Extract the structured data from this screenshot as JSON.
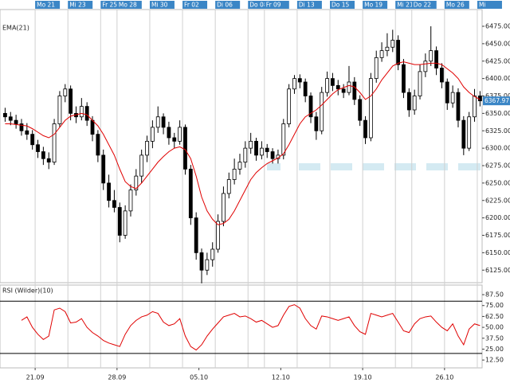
{
  "chart_data": [
    {
      "type": "candlestick",
      "top_labels": [
        null,
        null,
        null,
        null,
        null,
        null,
        "Mo 21",
        null,
        null,
        null,
        null,
        null,
        "Mi 23",
        null,
        null,
        null,
        null,
        null,
        "Fr 25",
        null,
        null,
        "Mo 28",
        null,
        null,
        null,
        null,
        null,
        "Mi 30",
        null,
        null,
        null,
        null,
        null,
        "Fr 02",
        null,
        null,
        null,
        null,
        null,
        "Di 06",
        null,
        null,
        null,
        null,
        null,
        "Do 08",
        null,
        null,
        "Fr 09",
        null,
        null,
        null,
        null,
        null,
        "Di 13",
        null,
        null,
        null,
        null,
        null,
        "Do 15",
        null,
        null,
        null,
        null,
        null,
        "Mo 19",
        null,
        null,
        null,
        null,
        null,
        "Mi 21",
        null,
        null,
        "Do 22",
        null,
        null,
        null,
        null,
        null,
        "Mo 26",
        null,
        null,
        null,
        null,
        null,
        "Mi"
      ],
      "ohlc": [
        [
          6350,
          6358,
          6338,
          6345
        ],
        [
          6345,
          6352,
          6333,
          6340
        ],
        [
          6340,
          6348,
          6328,
          6335
        ],
        [
          6335,
          6342,
          6318,
          6325
        ],
        [
          6325,
          6336,
          6312,
          6320
        ],
        [
          6320,
          6326,
          6298,
          6305
        ],
        [
          6305,
          6312,
          6286,
          6295
        ],
        [
          6295,
          6302,
          6276,
          6285
        ],
        [
          6285,
          6294,
          6270,
          6280
        ],
        [
          6280,
          6342,
          6276,
          6335
        ],
        [
          6335,
          6382,
          6330,
          6375
        ],
        [
          6375,
          6392,
          6366,
          6385
        ],
        [
          6385,
          6390,
          6340,
          6350
        ],
        [
          6350,
          6360,
          6336,
          6345
        ],
        [
          6345,
          6372,
          6340,
          6360
        ],
        [
          6360,
          6366,
          6332,
          6340
        ],
        [
          6340,
          6346,
          6310,
          6320
        ],
        [
          6320,
          6326,
          6280,
          6290
        ],
        [
          6290,
          6298,
          6240,
          6250
        ],
        [
          6250,
          6262,
          6215,
          6225
        ],
        [
          6225,
          6240,
          6208,
          6215
        ],
        [
          6215,
          6222,
          6165,
          6175
        ],
        [
          6175,
          6218,
          6170,
          6210
        ],
        [
          6210,
          6248,
          6202,
          6240
        ],
        [
          6240,
          6270,
          6232,
          6260
        ],
        [
          6260,
          6298,
          6250,
          6290
        ],
        [
          6290,
          6318,
          6280,
          6310
        ],
        [
          6310,
          6340,
          6300,
          6330
        ],
        [
          6330,
          6360,
          6322,
          6345
        ],
        [
          6345,
          6350,
          6320,
          6330
        ],
        [
          6330,
          6338,
          6305,
          6315
        ],
        [
          6315,
          6322,
          6300,
          6310
        ],
        [
          6310,
          6340,
          6305,
          6330
        ],
        [
          6330,
          6334,
          6262,
          6270
        ],
        [
          6270,
          6276,
          6190,
          6200
        ],
        [
          6200,
          6208,
          6140,
          6150
        ],
        [
          6150,
          6156,
          6106,
          6125
        ],
        [
          6125,
          6150,
          6118,
          6140
        ],
        [
          6140,
          6165,
          6130,
          6155
        ],
        [
          6155,
          6205,
          6150,
          6195
        ],
        [
          6195,
          6245,
          6188,
          6235
        ],
        [
          6235,
          6265,
          6228,
          6255
        ],
        [
          6255,
          6285,
          6248,
          6270
        ],
        [
          6270,
          6292,
          6262,
          6280
        ],
        [
          6280,
          6310,
          6272,
          6300
        ],
        [
          6300,
          6322,
          6292,
          6310
        ],
        [
          6310,
          6315,
          6282,
          6290
        ],
        [
          6290,
          6310,
          6284,
          6300
        ],
        [
          6300,
          6306,
          6286,
          6295
        ],
        [
          6295,
          6300,
          6278,
          6285
        ],
        [
          6285,
          6298,
          6278,
          6290
        ],
        [
          6290,
          6342,
          6284,
          6335
        ],
        [
          6335,
          6392,
          6330,
          6385
        ],
        [
          6385,
          6405,
          6378,
          6400
        ],
        [
          6400,
          6406,
          6386,
          6395
        ],
        [
          6395,
          6400,
          6366,
          6375
        ],
        [
          6375,
          6380,
          6336,
          6345
        ],
        [
          6345,
          6352,
          6312,
          6325
        ],
        [
          6325,
          6388,
          6320,
          6380
        ],
        [
          6380,
          6410,
          6374,
          6400
        ],
        [
          6400,
          6408,
          6382,
          6390
        ],
        [
          6390,
          6398,
          6376,
          6385
        ],
        [
          6385,
          6392,
          6372,
          6380
        ],
        [
          6380,
          6418,
          6376,
          6395
        ],
        [
          6395,
          6402,
          6362,
          6370
        ],
        [
          6370,
          6376,
          6332,
          6340
        ],
        [
          6340,
          6346,
          6306,
          6315
        ],
        [
          6315,
          6408,
          6310,
          6400
        ],
        [
          6400,
          6440,
          6394,
          6430
        ],
        [
          6430,
          6452,
          6424,
          6440
        ],
        [
          6440,
          6465,
          6432,
          6445
        ],
        [
          6445,
          6470,
          6438,
          6455
        ],
        [
          6455,
          6462,
          6412,
          6420
        ],
        [
          6420,
          6428,
          6372,
          6380
        ],
        [
          6380,
          6386,
          6345,
          6355
        ],
        [
          6355,
          6384,
          6348,
          6375
        ],
        [
          6375,
          6420,
          6370,
          6410
        ],
        [
          6410,
          6436,
          6402,
          6425
        ],
        [
          6425,
          6475,
          6418,
          6440
        ],
        [
          6440,
          6446,
          6405,
          6415
        ],
        [
          6415,
          6422,
          6386,
          6395
        ],
        [
          6395,
          6400,
          6355,
          6365
        ],
        [
          6365,
          6390,
          6358,
          6380
        ],
        [
          6380,
          6386,
          6330,
          6340
        ],
        [
          6340,
          6346,
          6290,
          6300
        ],
        [
          6300,
          6352,
          6296,
          6345
        ],
        [
          6345,
          6385,
          6338,
          6375
        ],
        [
          6375,
          6382,
          6360,
          6367.97
        ]
      ],
      "up_color": "#ffffff",
      "down_color": "#000000",
      "series": [
        {
          "name": "EMA(21)",
          "color": "#e00000",
          "values": [
            6335,
            6335,
            6334,
            6333,
            6332,
            6328,
            6323,
            6318,
            6315,
            6320,
            6330,
            6340,
            6346,
            6348,
            6350,
            6348,
            6340,
            6332,
            6320,
            6305,
            6290,
            6270,
            6252,
            6245,
            6242,
            6250,
            6260,
            6270,
            6280,
            6288,
            6295,
            6300,
            6302,
            6298,
            6285,
            6260,
            6230,
            6210,
            6198,
            6190,
            6192,
            6198,
            6210,
            6225,
            6240,
            6255,
            6265,
            6272,
            6278,
            6282,
            6286,
            6292,
            6305,
            6320,
            6335,
            6345,
            6350,
            6355,
            6362,
            6370,
            6378,
            6384,
            6387,
            6390,
            6388,
            6380,
            6370,
            6375,
            6385,
            6398,
            6408,
            6418,
            6422,
            6424,
            6422,
            6420,
            6420,
            6421,
            6422,
            6422,
            6420,
            6414,
            6408,
            6400,
            6388,
            6380,
            6374,
            6370
          ]
        }
      ],
      "last_price": 6367.97,
      "ylim": [
        6107,
        6499
      ],
      "yticks": [
        {
          "value": 6125,
          "label": "6125.00"
        },
        {
          "value": 6150,
          "label": "6150.00"
        },
        {
          "value": 6175,
          "label": "6175.00"
        },
        {
          "value": 6200,
          "label": "6200.00"
        },
        {
          "value": 6225,
          "label": "6225.00"
        },
        {
          "value": 6250,
          "label": "6250.00"
        },
        {
          "value": 6275,
          "label": "6275.00"
        },
        {
          "value": 6300,
          "label": "6300.00"
        },
        {
          "value": 6325,
          "label": "6325.00"
        },
        {
          "value": 6350,
          "label": "6350.00"
        },
        {
          "value": 6375,
          "label": "6375.00"
        },
        {
          "value": 6400,
          "label": "6400.00"
        },
        {
          "value": 6425,
          "label": "6425.00"
        },
        {
          "value": 6450,
          "label": "6450.00"
        },
        {
          "value": 6475,
          "label": "6475.00"
        }
      ]
    },
    {
      "type": "line",
      "categories": [
        null,
        null,
        null,
        null,
        null,
        null,
        "21.09",
        null,
        null,
        null,
        null,
        null,
        null,
        null,
        null,
        null,
        null,
        null,
        null,
        null,
        null,
        "28.09",
        null,
        null,
        null,
        null,
        null,
        null,
        null,
        null,
        null,
        null,
        null,
        null,
        null,
        null,
        "05.10",
        null,
        null,
        null,
        null,
        null,
        null,
        null,
        null,
        null,
        null,
        null,
        null,
        null,
        null,
        "12.10",
        null,
        null,
        null,
        null,
        null,
        null,
        null,
        null,
        null,
        null,
        null,
        null,
        null,
        null,
        "19.10",
        null,
        null,
        null,
        null,
        null,
        null,
        null,
        null,
        null,
        null,
        null,
        null,
        null,
        null,
        "26.10",
        null,
        null,
        null,
        null,
        null,
        null
      ],
      "series": [
        {
          "name": "RSI (Wilder)(10)",
          "color": "#e00000",
          "values": [
            null,
            null,
            null,
            58,
            62,
            50,
            42,
            36,
            40,
            70,
            72,
            68,
            55,
            56,
            60,
            50,
            44,
            40,
            35,
            32,
            30,
            28,
            42,
            52,
            58,
            62,
            64,
            68,
            66,
            56,
            52,
            54,
            60,
            40,
            28,
            24,
            30,
            40,
            48,
            55,
            62,
            64,
            66,
            62,
            63,
            60,
            56,
            58,
            54,
            50,
            52,
            64,
            74,
            76,
            72,
            60,
            52,
            48,
            63,
            62,
            60,
            58,
            60,
            62,
            52,
            45,
            42,
            66,
            64,
            62,
            64,
            66,
            56,
            46,
            44,
            54,
            60,
            62,
            63,
            56,
            50,
            46,
            54,
            40,
            30,
            48,
            54,
            52
          ]
        }
      ],
      "levels": [
        80,
        20
      ],
      "ylim": [
        3.5,
        98.5
      ],
      "yticks": [
        {
          "value": 12.5,
          "label": "12.50"
        },
        {
          "value": 25,
          "label": "25.00"
        },
        {
          "value": 37.5,
          "label": "37.50"
        },
        {
          "value": 50,
          "label": "50.00"
        },
        {
          "value": 62.5,
          "label": "62.50"
        },
        {
          "value": 75,
          "label": "75.00"
        },
        {
          "value": 87.5,
          "label": "87.50"
        }
      ]
    }
  ]
}
